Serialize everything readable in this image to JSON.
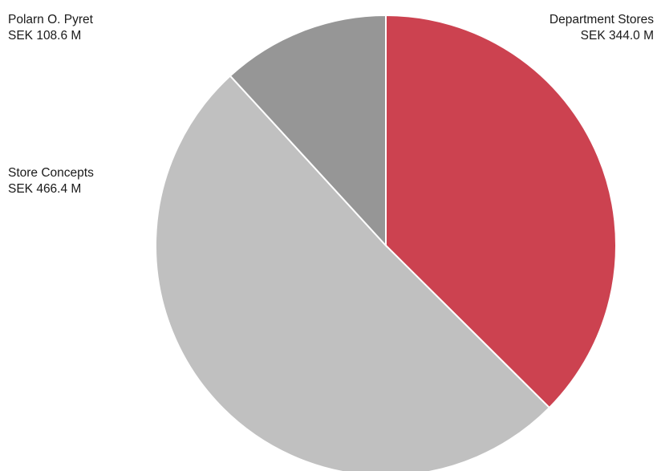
{
  "chart_data": {
    "type": "pie",
    "title": "",
    "slices": [
      {
        "name": "Department Stores",
        "value": 344.0,
        "value_label": "SEK 344.0 M",
        "color": "#cc4250"
      },
      {
        "name": "Store Concepts",
        "value": 466.4,
        "value_label": "SEK 466.4 M",
        "color": "#c0c0c0"
      },
      {
        "name": "Polarn O. Pyret",
        "value": 108.6,
        "value_label": "SEK 108.6 M",
        "color": "#969696"
      }
    ],
    "start_angle_deg": 0,
    "direction": "clockwise",
    "legend": "none"
  }
}
